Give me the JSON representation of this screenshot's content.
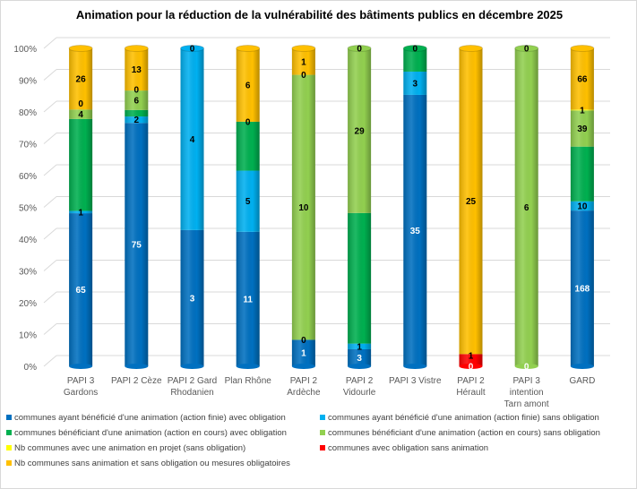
{
  "chart_data": {
    "type": "bar",
    "stacked": "percent",
    "title": "Animation pour la réduction de la vulnérabilité des bâtiments publics en décembre 2025",
    "categories": [
      [
        "PAPI 3",
        "Gardons"
      ],
      [
        "PAPI 2 Cèze"
      ],
      [
        "PAPI 2 Gard",
        "Rhodanien"
      ],
      [
        "Plan Rhône"
      ],
      [
        "PAPI 2",
        "Ardèche"
      ],
      [
        "PAPI 2",
        "Vidourle"
      ],
      [
        "PAPI 3 Vistre"
      ],
      [
        "PAPI 2",
        "Hérault"
      ],
      [
        "PAPI 3",
        "intention",
        "Tarn amont"
      ],
      [
        "GARD"
      ]
    ],
    "yticks": [
      "0%",
      "10%",
      "20%",
      "30%",
      "40%",
      "50%",
      "60%",
      "70%",
      "80%",
      "90%",
      "100%"
    ],
    "ylim": [
      0,
      100
    ],
    "grid": true,
    "legend_position": "bottom",
    "series": [
      {
        "name": "communes ayant bénéficié d'une animation (action finie) avec obligation",
        "color": "#0070C0",
        "label_color": "#ffffff",
        "values": [
          65,
          75,
          3,
          11,
          1,
          3,
          35,
          0,
          0,
          168
        ],
        "labels": [
          65,
          75,
          3,
          11,
          1,
          3,
          35,
          0,
          0,
          168
        ]
      },
      {
        "name": "communes ayant bénéficié d'une animation (action finie) sans obligation",
        "color": "#00B0F0",
        "label_color": "#000000",
        "values": [
          1,
          2,
          4,
          5,
          0,
          1,
          3,
          0,
          0,
          10
        ],
        "labels": [
          1,
          2,
          4,
          5,
          0,
          1,
          3,
          null,
          null,
          10
        ]
      },
      {
        "name": "communes bénéficiant d'une animation (action en cours) avec obligation",
        "color": "#00B050",
        "label_color": "#000000",
        "values": [
          39,
          2,
          0,
          4,
          0,
          23,
          3,
          0,
          0,
          59
        ],
        "labels": [
          null,
          null,
          null,
          null,
          null,
          null,
          null,
          null,
          null,
          null
        ]
      },
      {
        "name": "communes bénéficiant d'une animation (action en cours) sans obligation",
        "color": "#92D050",
        "label_color": "#000000",
        "values": [
          4,
          6,
          0,
          0,
          10,
          29,
          0,
          0,
          6,
          39
        ],
        "labels": [
          4,
          6,
          null,
          0,
          10,
          29,
          null,
          null,
          6,
          39
        ]
      },
      {
        "name": "Nb communes avec une animation en projet (sans obligation)",
        "color": "#FFFF00",
        "label_color": "#000000",
        "values": [
          0,
          0,
          0,
          0,
          0,
          0,
          0,
          0,
          0,
          1
        ],
        "labels": [
          0,
          0,
          null,
          null,
          0,
          null,
          null,
          null,
          null,
          1
        ]
      },
      {
        "name": "communes  avec obligation sans animation",
        "color": "#FF0000",
        "label_color": "#000000",
        "values": [
          0,
          0,
          0,
          0,
          0,
          0,
          0,
          1,
          0,
          0
        ],
        "labels": [
          null,
          null,
          null,
          null,
          null,
          null,
          null,
          1,
          null,
          null
        ]
      },
      {
        "name": "Nb communes sans animation et sans obligation ou mesures obligatoires",
        "color": "#FFC000",
        "label_color": "#000000",
        "values": [
          26,
          13,
          0,
          6,
          1,
          0,
          0,
          25,
          0,
          66
        ],
        "labels": [
          26,
          13,
          0,
          6,
          1,
          0,
          0,
          25,
          0,
          66
        ]
      }
    ]
  }
}
